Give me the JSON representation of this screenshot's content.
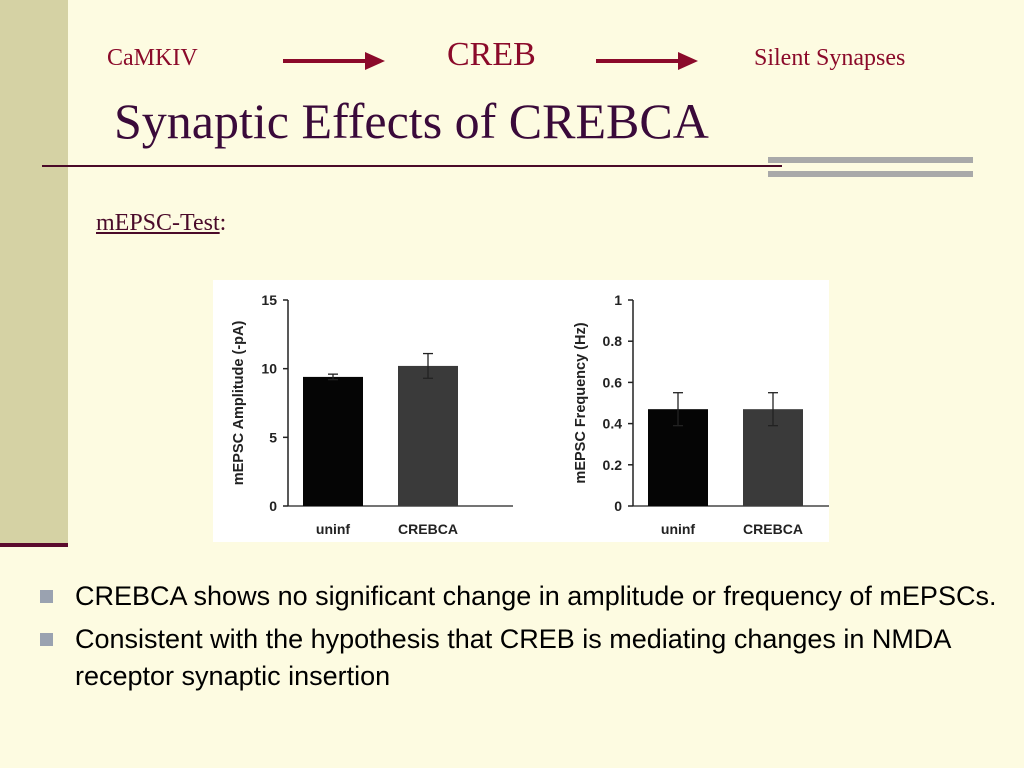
{
  "header": {
    "flow": [
      "CaMKIV",
      "CREB",
      "Silent Synapses"
    ],
    "title": "Synaptic Effects of CREBCA",
    "subhead_label": "mEPSC-Test",
    "subhead_suffix": ":"
  },
  "colors": {
    "accent": "#8b0a2a",
    "title": "#3a0a3a",
    "background": "#fdfbe1",
    "side_band": "#d5d2a4",
    "bullet_marker": "#9aa2b0"
  },
  "chart_data": [
    {
      "type": "bar",
      "categories": [
        "uninf",
        "CREBCA"
      ],
      "values": [
        9.4,
        10.2
      ],
      "errors": [
        0.2,
        0.9
      ],
      "bar_colors": [
        "#050505",
        "#3a3a3a"
      ],
      "ylabel": "mEPSC Amplitude (-pA)",
      "xlabel": "",
      "ylim": [
        0,
        15
      ],
      "yticks": [
        0,
        5,
        10,
        15
      ],
      "ytick_labels": [
        "0",
        "5",
        "10",
        "15"
      ],
      "grid": false
    },
    {
      "type": "bar",
      "categories": [
        "uninf",
        "CREBCA"
      ],
      "values": [
        0.47,
        0.47
      ],
      "errors": [
        0.08,
        0.08
      ],
      "bar_colors": [
        "#050505",
        "#3a3a3a"
      ],
      "ylabel": "mEPSC Frequency (Hz)",
      "xlabel": "",
      "ylim": [
        0,
        1
      ],
      "yticks": [
        0,
        0.2,
        0.4,
        0.6,
        0.8,
        1
      ],
      "ytick_labels": [
        "0",
        "0.2",
        "0.4",
        "0.6",
        "0.8",
        "1"
      ],
      "grid": false
    }
  ],
  "bullets": [
    "CREBCA shows no significant change in amplitude or frequency of mEPSCs.",
    "Consistent with the hypothesis that CREB is mediating changes in NMDA receptor synaptic insertion"
  ]
}
